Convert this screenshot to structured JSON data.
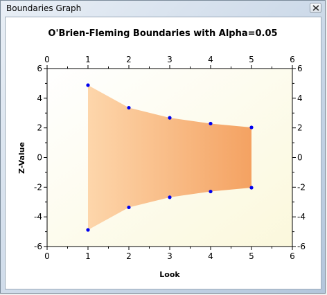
{
  "window": {
    "title": "Boundaries Graph"
  },
  "chart_data": {
    "type": "area",
    "title": "O'Brien-Fleming Boundaries with Alpha=0.05",
    "xlabel": "Look",
    "ylabel": "Z-Value",
    "xlim": [
      0,
      6
    ],
    "ylim": [
      -6,
      6
    ],
    "x_ticks": [
      0,
      1,
      2,
      3,
      4,
      5,
      6
    ],
    "y_ticks": [
      -6,
      -4,
      -2,
      0,
      2,
      4,
      6
    ],
    "grid": false,
    "legend": "none",
    "series": [
      {
        "values": [
          4.88,
          3.36,
          2.68,
          2.29,
          2.03
        ]
      },
      {
        "values": [
          -4.88,
          -3.36,
          -2.68,
          -2.29,
          -2.03
        ]
      }
    ],
    "x": [
      1,
      2,
      3,
      4,
      5
    ],
    "colors": {
      "fill": "#f5a766",
      "fill_light": "#fcd3a6",
      "point": "#0000ee",
      "background": "#fffdf0"
    }
  }
}
